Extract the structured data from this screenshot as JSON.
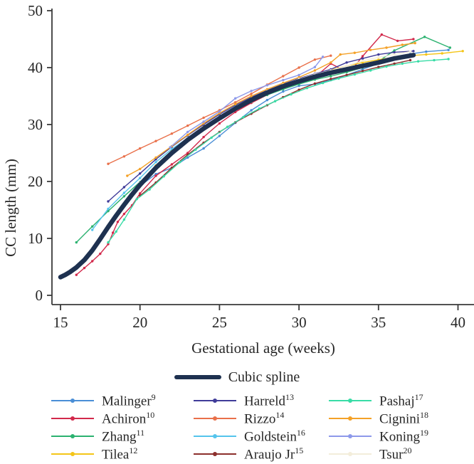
{
  "figure": {
    "y_axis_title": "CC length (mm)",
    "x_axis_title": "Gestational age (weeks)",
    "y_ticks": [
      0,
      10,
      20,
      30,
      40,
      50
    ],
    "x_ticks": [
      15,
      20,
      25,
      30,
      35,
      40
    ],
    "axis_color": "#3a3a3a",
    "text_color": "#262626"
  },
  "legend": {
    "spline_label": "Cubic spline",
    "columns": [
      [
        "malinger",
        "achiron",
        "zhang",
        "tilea"
      ],
      [
        "harreld",
        "rizzo",
        "goldstein",
        "araujo"
      ],
      [
        "pashaj",
        "cignini",
        "koning",
        "tsur"
      ]
    ]
  },
  "chart_data": {
    "type": "line",
    "title": "",
    "xlabel": "Gestational age (weeks)",
    "ylabel": "CC length (mm)",
    "xlim": [
      15,
      40
    ],
    "ylim": [
      0,
      50
    ],
    "grid": false,
    "legend_position": "bottom",
    "spline": {
      "label": "Cubic spline",
      "color": "#1e3150",
      "width": 6.5,
      "points": [
        [
          15,
          3.2
        ],
        [
          15.3,
          3.6
        ],
        [
          15.6,
          4.1
        ],
        [
          16,
          4.9
        ],
        [
          16.5,
          6.2
        ],
        [
          17,
          7.9
        ],
        [
          17.5,
          9.9
        ],
        [
          18,
          12.0
        ],
        [
          18.5,
          14.0
        ],
        [
          19,
          15.9
        ],
        [
          19.5,
          17.7
        ],
        [
          20,
          19.4
        ],
        [
          21,
          22.4
        ],
        [
          22,
          25.0
        ],
        [
          23,
          27.3
        ],
        [
          24,
          29.3
        ],
        [
          25,
          31.1
        ],
        [
          26,
          32.8
        ],
        [
          27,
          34.3
        ],
        [
          28,
          35.6
        ],
        [
          29,
          36.7
        ],
        [
          30,
          37.6
        ],
        [
          31,
          38.4
        ],
        [
          32,
          39.1
        ],
        [
          33,
          39.7
        ],
        [
          34,
          40.3
        ],
        [
          35,
          40.9
        ],
        [
          36,
          41.6
        ],
        [
          37.2,
          42.2
        ]
      ]
    },
    "series": [
      {
        "id": "malinger",
        "label": "Malinger",
        "sup": "9",
        "color": "#4a8ed6",
        "points": [
          [
            20,
            19.2
          ],
          [
            21,
            21.3
          ],
          [
            22,
            22.4
          ],
          [
            23,
            24.2
          ],
          [
            24,
            25.8
          ],
          [
            25,
            28.0
          ],
          [
            26,
            30.3
          ],
          [
            27,
            32.5
          ],
          [
            28,
            34.3
          ],
          [
            29,
            35.8
          ],
          [
            30,
            36.8
          ],
          [
            31,
            37.1
          ],
          [
            32,
            37.8
          ],
          [
            33,
            38.7
          ],
          [
            34,
            39.7
          ],
          [
            35,
            40.7
          ],
          [
            36,
            41.7
          ],
          [
            37,
            42.4
          ],
          [
            38,
            42.8
          ],
          [
            39.4,
            43.1
          ]
        ]
      },
      {
        "id": "achiron",
        "label": "Achiron",
        "sup": "10",
        "color": "#d2294b",
        "points": [
          [
            16,
            3.6
          ],
          [
            16.5,
            4.8
          ],
          [
            17,
            6.0
          ],
          [
            17.5,
            7.3
          ],
          [
            18,
            9.0
          ],
          [
            18.3,
            11.0
          ],
          [
            18.6,
            12.9
          ],
          [
            19,
            14.3
          ],
          [
            19.5,
            15.8
          ],
          [
            20,
            17.9
          ],
          [
            21,
            21.0
          ],
          [
            22,
            23.0
          ],
          [
            23,
            25.0
          ],
          [
            24,
            27.8
          ],
          [
            25,
            30.2
          ],
          [
            26,
            32.2
          ],
          [
            27,
            33.8
          ],
          [
            28,
            35.2
          ],
          [
            29,
            36.4
          ],
          [
            30,
            37.4
          ],
          [
            31,
            38.3
          ],
          [
            32,
            40.7
          ],
          [
            32.7,
            39.7
          ],
          [
            33.4,
            39.9
          ],
          [
            34,
            42.0
          ],
          [
            35.2,
            45.8
          ],
          [
            36.2,
            44.7
          ],
          [
            37.2,
            45.0
          ]
        ]
      },
      {
        "id": "zhang",
        "label": "Zhang",
        "sup": "11",
        "color": "#2cb270",
        "points": [
          [
            16,
            9.3
          ],
          [
            17,
            12.1
          ],
          [
            18,
            14.8
          ],
          [
            19,
            17.4
          ],
          [
            20,
            19.9
          ],
          [
            21,
            22.7
          ],
          [
            22,
            25.2
          ],
          [
            23,
            27.3
          ],
          [
            24,
            29.2
          ],
          [
            25,
            31.0
          ],
          [
            26,
            32.6
          ],
          [
            27,
            34.0
          ],
          [
            28,
            35.2
          ],
          [
            29,
            36.2
          ],
          [
            30,
            37.1
          ],
          [
            31,
            37.9
          ],
          [
            32,
            38.5
          ],
          [
            33,
            39.2
          ],
          [
            34,
            40.0
          ],
          [
            35,
            41.1
          ],
          [
            36,
            43.0
          ],
          [
            37.9,
            45.4
          ],
          [
            39.5,
            43.5
          ]
        ]
      },
      {
        "id": "tilea",
        "label": "Tilea",
        "sup": "12",
        "color": "#f4c518",
        "points": [
          [
            19.5,
            17.8
          ],
          [
            20,
            19.5
          ],
          [
            21,
            22.8
          ],
          [
            22,
            25.4
          ],
          [
            23,
            27.6
          ],
          [
            24,
            29.6
          ],
          [
            25,
            31.4
          ],
          [
            26,
            33.0
          ],
          [
            27,
            34.5
          ],
          [
            28,
            35.8
          ],
          [
            29,
            37.0
          ],
          [
            30,
            38.0
          ],
          [
            31,
            38.8
          ],
          [
            32,
            39.6
          ],
          [
            33,
            40.3
          ],
          [
            34,
            40.9
          ],
          [
            35,
            41.4
          ],
          [
            36,
            41.8
          ],
          [
            37,
            42.1
          ],
          [
            38,
            42.3
          ],
          [
            39,
            42.5
          ],
          [
            40.3,
            42.9
          ]
        ]
      },
      {
        "id": "harreld",
        "label": "Harreld",
        "sup": "13",
        "color": "#3f3b99",
        "points": [
          [
            18,
            16.5
          ],
          [
            19,
            19.0
          ],
          [
            20,
            21.4
          ],
          [
            21,
            23.9
          ],
          [
            22,
            26.1
          ],
          [
            23,
            28.1
          ],
          [
            24,
            30.0
          ],
          [
            25,
            31.8
          ],
          [
            26,
            33.4
          ],
          [
            27,
            34.8
          ],
          [
            28,
            36.0
          ],
          [
            29,
            37.1
          ],
          [
            30,
            38.1
          ],
          [
            31,
            38.9
          ],
          [
            32,
            39.7
          ],
          [
            33,
            40.9
          ],
          [
            34,
            41.6
          ],
          [
            35,
            42.3
          ],
          [
            36,
            42.7
          ],
          [
            37.2,
            42.9
          ]
        ]
      },
      {
        "id": "rizzo",
        "label": "Rizzo",
        "sup": "14",
        "color": "#e9704a",
        "points": [
          [
            18,
            23.1
          ],
          [
            19,
            24.4
          ],
          [
            20,
            25.8
          ],
          [
            21,
            27.1
          ],
          [
            22,
            28.4
          ],
          [
            23,
            29.8
          ],
          [
            24,
            31.2
          ],
          [
            25,
            32.5
          ],
          [
            26,
            33.9
          ],
          [
            27,
            35.4
          ],
          [
            28,
            37.0
          ],
          [
            29,
            38.5
          ],
          [
            30,
            40.0
          ],
          [
            31,
            41.4
          ],
          [
            32,
            42.1
          ]
        ]
      },
      {
        "id": "goldstein",
        "label": "Goldstein",
        "sup": "16",
        "color": "#55c4ec",
        "points": [
          [
            17,
            11.5
          ],
          [
            18,
            15.2
          ],
          [
            19,
            18.0
          ],
          [
            20,
            20.6
          ],
          [
            21,
            23.4
          ],
          [
            22,
            25.7
          ],
          [
            23,
            27.6
          ],
          [
            24,
            29.5
          ],
          [
            25,
            31.4
          ],
          [
            26,
            33.1
          ],
          [
            27,
            34.5
          ],
          [
            28,
            35.8
          ],
          [
            29,
            36.8
          ],
          [
            30,
            37.7
          ],
          [
            31,
            38.5
          ],
          [
            32,
            39.2
          ],
          [
            33,
            39.8
          ],
          [
            34,
            40.4
          ],
          [
            35,
            41.0
          ],
          [
            35.8,
            41.4
          ]
        ]
      },
      {
        "id": "araujo",
        "label": "Araujo Jr",
        "sup": "15",
        "color": "#8c2f2c",
        "points": [
          [
            20,
            17.5
          ],
          [
            21,
            19.8
          ],
          [
            22,
            22.4
          ],
          [
            23,
            24.7
          ],
          [
            24,
            26.8
          ],
          [
            25,
            28.7
          ],
          [
            26,
            30.4
          ],
          [
            27,
            31.9
          ],
          [
            28,
            33.4
          ],
          [
            29,
            34.8
          ],
          [
            30,
            36.1
          ],
          [
            31,
            37.2
          ],
          [
            32,
            38.0
          ],
          [
            33,
            38.7
          ],
          [
            34,
            39.4
          ],
          [
            35,
            40.1
          ],
          [
            36,
            40.7
          ],
          [
            37,
            41.3
          ]
        ]
      },
      {
        "id": "pashaj",
        "label": "Pashaj",
        "sup": "17",
        "color": "#38dca6",
        "points": [
          [
            18,
            9.3
          ],
          [
            18.5,
            11.2
          ],
          [
            19,
            13.3
          ],
          [
            19.8,
            16.9
          ],
          [
            20.6,
            18.6
          ],
          [
            21.5,
            20.9
          ],
          [
            22.5,
            23.4
          ],
          [
            23.5,
            25.6
          ],
          [
            24.5,
            27.7
          ],
          [
            25.5,
            29.6
          ],
          [
            26.5,
            31.3
          ],
          [
            27.5,
            32.8
          ],
          [
            28.5,
            34.1
          ],
          [
            29.5,
            35.3
          ],
          [
            30.5,
            36.4
          ],
          [
            31.5,
            37.3
          ],
          [
            32.5,
            38.1
          ],
          [
            33.5,
            38.8
          ],
          [
            34.5,
            39.5
          ],
          [
            35.5,
            40.2
          ],
          [
            36.5,
            40.7
          ],
          [
            37.5,
            41.1
          ],
          [
            38.5,
            41.3
          ],
          [
            39.4,
            41.5
          ]
        ]
      },
      {
        "id": "cignini",
        "label": "Cignini",
        "sup": "18",
        "color": "#f4a127",
        "points": [
          [
            19.2,
            21.0
          ],
          [
            20,
            22.2
          ],
          [
            21,
            24.2
          ],
          [
            22,
            26.2
          ],
          [
            23,
            28.2
          ],
          [
            24,
            30.2
          ],
          [
            25,
            32.0
          ],
          [
            26,
            33.6
          ],
          [
            27,
            35.0
          ],
          [
            28,
            36.2
          ],
          [
            29,
            37.3
          ],
          [
            30,
            38.3
          ],
          [
            31,
            39.5
          ],
          [
            32,
            40.9
          ],
          [
            32.6,
            42.3
          ],
          [
            33.5,
            42.6
          ],
          [
            34.5,
            43.1
          ],
          [
            35.5,
            43.5
          ],
          [
            36.5,
            44.0
          ],
          [
            37.3,
            44.3
          ]
        ]
      },
      {
        "id": "koning",
        "label": "Koning",
        "sup": "19",
        "color": "#8d99ea",
        "points": [
          [
            21.9,
            26.0
          ],
          [
            23,
            28.7
          ],
          [
            24,
            30.5
          ],
          [
            25,
            32.3
          ],
          [
            26,
            34.6
          ],
          [
            27,
            35.9
          ],
          [
            28,
            36.9
          ],
          [
            29,
            37.8
          ],
          [
            30,
            38.7
          ],
          [
            31,
            40.1
          ],
          [
            31.5,
            41.9
          ]
        ]
      },
      {
        "id": "tsur",
        "label": "Tsur",
        "sup": "20",
        "color": "#f3edda",
        "points": [
          [
            20,
            19.8
          ],
          [
            21,
            22.6
          ],
          [
            22,
            25.2
          ],
          [
            23,
            27.4
          ],
          [
            24,
            29.5
          ],
          [
            25,
            31.3
          ],
          [
            26,
            33.0
          ],
          [
            27,
            34.5
          ],
          [
            28,
            35.9
          ],
          [
            29,
            37.0
          ],
          [
            30,
            38.0
          ],
          [
            31,
            38.8
          ],
          [
            32,
            39.5
          ],
          [
            33,
            40.3
          ],
          [
            34,
            41.2
          ],
          [
            35,
            41.8
          ],
          [
            36,
            42.3
          ],
          [
            37,
            42.8
          ]
        ]
      }
    ]
  }
}
